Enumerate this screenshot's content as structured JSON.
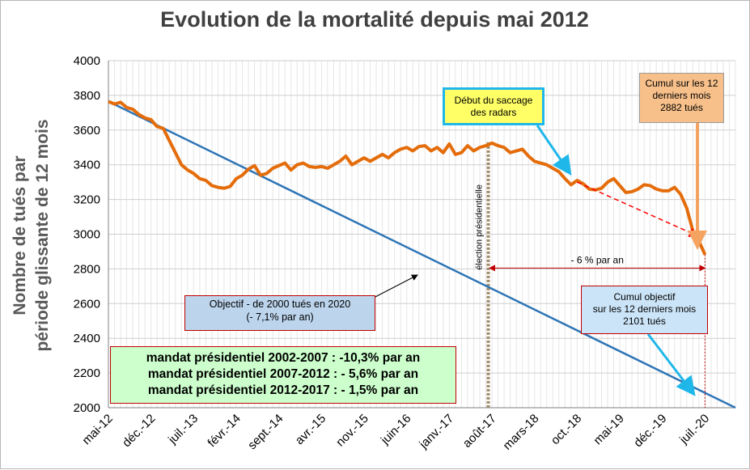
{
  "chart_data": {
    "type": "line",
    "title": "Evolution de la mortalité depuis mai 2012",
    "ylabel_line1": "Nombre de tués par",
    "ylabel_line2": "période  glissante de 12 mois",
    "ylim": [
      2000,
      4000
    ],
    "yticks": [
      "2000",
      "2200",
      "2400",
      "2600",
      "2800",
      "3000",
      "3200",
      "3400",
      "3600",
      "3800",
      "4000"
    ],
    "xlim": [
      0,
      103
    ],
    "xticks": [
      {
        "label": "mai-12",
        "x": 0
      },
      {
        "label": "déc.-12",
        "x": 7
      },
      {
        "label": "juil.-13",
        "x": 14
      },
      {
        "label": "févr.-14",
        "x": 21
      },
      {
        "label": "sept.-14",
        "x": 28
      },
      {
        "label": "avr.-15",
        "x": 35
      },
      {
        "label": "nov.-15",
        "x": 42
      },
      {
        "label": "juin-16",
        "x": 49
      },
      {
        "label": "janv.-17",
        "x": 56
      },
      {
        "label": "août-17",
        "x": 63
      },
      {
        "label": "mars-18",
        "x": 70
      },
      {
        "label": "oct.-18",
        "x": 77
      },
      {
        "label": "mai-19",
        "x": 84
      },
      {
        "label": "déc.-19",
        "x": 91
      },
      {
        "label": "juil.-20",
        "x": 98
      }
    ],
    "grid": true,
    "series": [
      {
        "name": "mortality",
        "color": "#e46c0a",
        "values": [
          3765,
          3750,
          3760,
          3730,
          3720,
          3690,
          3670,
          3660,
          3620,
          3610,
          3540,
          3470,
          3400,
          3370,
          3350,
          3320,
          3310,
          3280,
          3270,
          3265,
          3275,
          3320,
          3340,
          3375,
          3395,
          3340,
          3350,
          3380,
          3395,
          3410,
          3370,
          3400,
          3410,
          3390,
          3385,
          3390,
          3380,
          3400,
          3420,
          3450,
          3400,
          3420,
          3440,
          3420,
          3440,
          3460,
          3440,
          3470,
          3490,
          3500,
          3480,
          3505,
          3510,
          3480,
          3500,
          3470,
          3520,
          3460,
          3470,
          3510,
          3480,
          3500,
          3510,
          3525,
          3510,
          3500,
          3470,
          3480,
          3490,
          3450,
          3420,
          3410,
          3400,
          3380,
          3360,
          3320,
          3285,
          3310,
          3290,
          3260,
          3255,
          3265,
          3300,
          3320,
          3280,
          3240,
          3245,
          3260,
          3285,
          3280,
          3260,
          3250,
          3250,
          3270,
          3230,
          3150,
          3020,
          2960,
          2882
        ]
      },
      {
        "name": "objectif",
        "color": "#2e75b6",
        "start": [
          0,
          3765
        ],
        "end": [
          103,
          2000
        ]
      }
    ]
  },
  "annotations": {
    "objectif_line1": "Objectif - de 2000 tués en 2020",
    "objectif_line2": "(- 7,1% par an)",
    "mandat1": "mandat présidentiel 2002-2007 : -10,3% par an",
    "mandat2": "mandat présidentiel 2007-2012 : - 5,6% par an",
    "mandat3": "mandat présidentiel 2012-2017 : - 1,5% par an",
    "saccage_line1": "Début du saccage",
    "saccage_line2": "des radars",
    "cumul_line1": "Cumul sur les 12",
    "cumul_line2": "derniers mois",
    "cumul_line3": "2882 tués",
    "cumul_obj_line1": "Cumul objectif",
    "cumul_obj_line2": "sur les 12 derniers mois",
    "cumul_obj_line3": "2101 tués",
    "election": "élection présidentielle",
    "trend": "- 6 % par an"
  },
  "colors": {
    "mortality": "#e46c0a",
    "objectif": "#2e75b6",
    "election_line": "#a08a6a",
    "arrow_red": "#c00000",
    "trend_red": "#ff0000",
    "cumul_arrow": "#f4a460",
    "cyan_arrow": "#1fb7ea"
  }
}
